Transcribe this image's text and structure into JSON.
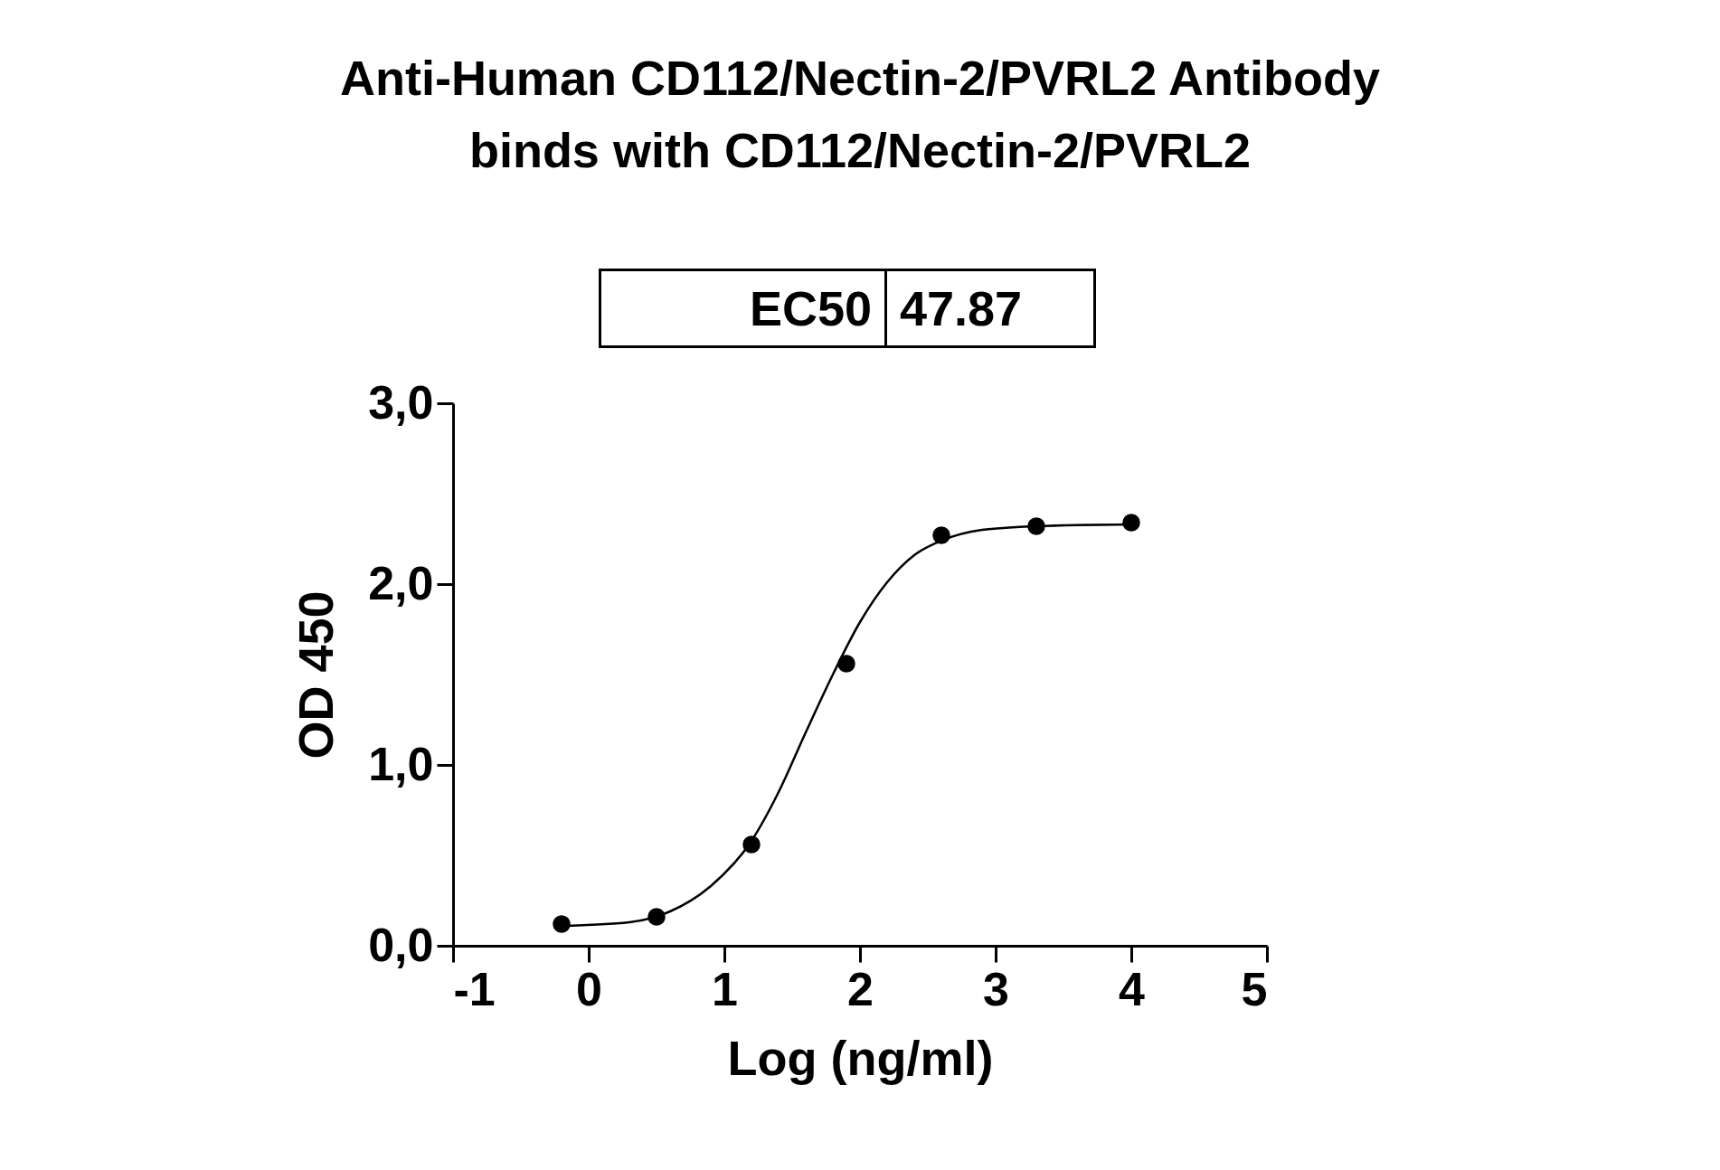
{
  "chart_data": {
    "type": "scatter",
    "title": "Anti-Human CD112/Nectin-2/PVRL2 Antibody\nbinds with CD112/Nectin-2/PVRL2",
    "xlabel": "Log (ng/ml)",
    "ylabel": "OD 450",
    "annotations": [
      "EC50",
      "47.87"
    ],
    "series": [
      {
        "color": "#000000",
        "marker": "circle",
        "x": [
          -0.2,
          0.5,
          1.2,
          1.9,
          2.6,
          3.3,
          4.0
        ],
        "values": [
          0.12,
          0.16,
          0.56,
          1.56,
          2.27,
          2.32,
          2.34
        ]
      },
      {
        "type": "line",
        "color": "#000000",
        "x": [
          -0.2,
          0.3,
          0.6,
          0.9,
          1.2,
          1.4,
          1.6,
          1.8,
          2.0,
          2.2,
          2.4,
          2.6,
          2.9,
          3.3,
          4.0
        ],
        "values": [
          0.11,
          0.13,
          0.19,
          0.33,
          0.58,
          0.85,
          1.18,
          1.5,
          1.79,
          2.01,
          2.16,
          2.24,
          2.3,
          2.32,
          2.33
        ]
      }
    ],
    "grid": false,
    "xlim": [
      -1,
      5
    ],
    "xticks": [
      -1,
      0,
      1,
      2,
      3,
      4,
      5
    ],
    "ylim": [
      0,
      3
    ],
    "yticks": [
      {
        "value": 0,
        "label": "0,0"
      },
      {
        "value": 1,
        "label": "1,0"
      },
      {
        "value": 2,
        "label": "2,0"
      },
      {
        "value": 3,
        "label": "3,0"
      }
    ]
  }
}
